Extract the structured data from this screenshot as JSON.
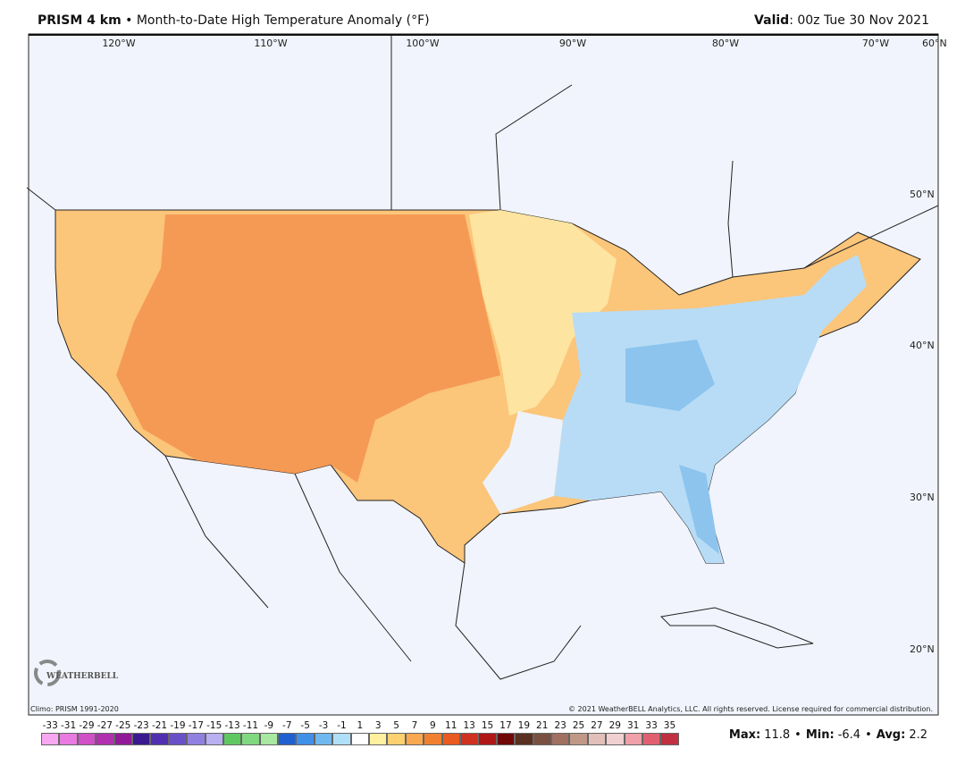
{
  "header": {
    "title": "PRISM 4 km",
    "separator": "•",
    "subtitle": "Month-to-Date High Temperature Anomaly (°F)",
    "valid_label": "Valid",
    "valid_text": ": 00z Tue 30 Nov 2021"
  },
  "longitude_labels": [
    "120°W",
    "110°W",
    "100°W",
    "90°W",
    "80°W",
    "70°W",
    "60°N"
  ],
  "latitude_labels": [
    "50°N",
    "40°N",
    "30°N",
    "20°N"
  ],
  "logo": "WEATHERBELL",
  "climo": "Climo: PRISM 1991-2020",
  "copyright": "© 2021 WeatherBELL Analytics, LLC. All rights reserved. License required for commercial distribution.",
  "colorbar": {
    "values": [
      -33,
      -31,
      -29,
      -27,
      -25,
      -23,
      -21,
      -19,
      -17,
      -15,
      -13,
      -11,
      -9,
      -7,
      -5,
      -3,
      -1,
      1,
      3,
      5,
      7,
      9,
      11,
      13,
      15,
      17,
      19,
      21,
      23,
      25,
      27,
      29,
      31,
      33,
      35
    ],
    "colors": [
      "#f7a8f0",
      "#e87ae0",
      "#d050c8",
      "#b030b0",
      "#901a98",
      "#3a1a90",
      "#5030b0",
      "#6a50c8",
      "#9080e0",
      "#b8b0f0",
      "#60c860",
      "#80d880",
      "#a8e8a0",
      "#2060d0",
      "#4090e8",
      "#70b8f0",
      "#b0e0f8",
      "#ffffff",
      "#fff0a0",
      "#fdd070",
      "#f8a850",
      "#f08030",
      "#e85a20",
      "#d03020",
      "#b01818",
      "#700808",
      "#5a3020",
      "#7a5040",
      "#a07060",
      "#c09888",
      "#e0c0b8",
      "#f0d0d0",
      "#f0a0a8",
      "#e06070",
      "#c03040"
    ]
  },
  "stats": {
    "separator": "•",
    "items": [
      {
        "label": "Max:",
        "value": 11.8
      },
      {
        "label": "Min:",
        "value": -6.4
      },
      {
        "label": "Avg:",
        "value": 2.2
      }
    ]
  }
}
